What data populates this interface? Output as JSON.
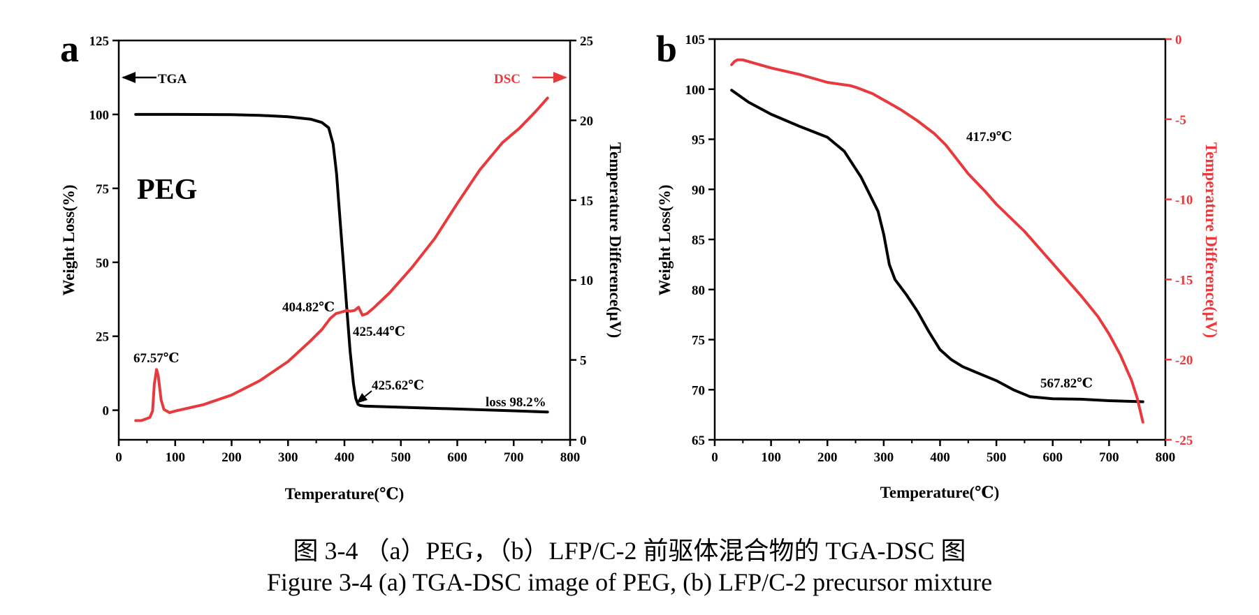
{
  "colors": {
    "tga": "#000000",
    "dsc": "#e8393d"
  },
  "chart_data": [
    {
      "type": "line",
      "panel_label": "a",
      "sample_label": "PEG",
      "xlabel": "Temperature(℃)",
      "ylabel_left": "Weight Loss(%)",
      "ylabel_right": "Temperature Difference(μV)",
      "xlim": [
        0,
        800
      ],
      "ylim_left": [
        -10,
        125
      ],
      "ylim_right": [
        0,
        25
      ],
      "x_ticks": [
        "0",
        "100",
        "200",
        "300",
        "400",
        "500",
        "600",
        "700",
        "800"
      ],
      "y_left_ticks": [
        "0",
        "25",
        "50",
        "75",
        "100",
        "125"
      ],
      "y_right_ticks": [
        "0",
        "5",
        "10",
        "15",
        "20",
        "25"
      ],
      "legend": [
        {
          "name": "TGA",
          "arrow": "left"
        },
        {
          "name": "DSC",
          "arrow": "right"
        }
      ],
      "series": [
        {
          "name": "TGA",
          "axis": "left",
          "x": [
            30,
            100,
            200,
            250,
            300,
            340,
            360,
            372,
            380,
            386,
            392,
            398,
            404,
            410,
            416,
            420,
            424,
            428,
            435,
            450,
            500,
            600,
            700,
            760
          ],
          "values": [
            100,
            100,
            99.9,
            99.7,
            99.2,
            98.4,
            97.3,
            95.5,
            90,
            80,
            65,
            50,
            35,
            20,
            9,
            4,
            2,
            1.6,
            1.4,
            1.3,
            1.0,
            0.4,
            -0.2,
            -0.6
          ]
        },
        {
          "name": "DSC",
          "axis": "right",
          "x": [
            30,
            40,
            55,
            60,
            63,
            67,
            70,
            75,
            80,
            90,
            100,
            150,
            200,
            250,
            300,
            340,
            360,
            375,
            385,
            395,
            404,
            410,
            418,
            425,
            432,
            440,
            450,
            480,
            520,
            560,
            600,
            640,
            680,
            710,
            740,
            760
          ],
          "values": [
            1.2,
            1.2,
            1.4,
            1.8,
            3.5,
            4.4,
            4.0,
            2.5,
            1.9,
            1.7,
            1.8,
            2.2,
            2.8,
            3.7,
            4.9,
            6.2,
            6.9,
            7.6,
            7.9,
            8.0,
            8.1,
            8.05,
            8.1,
            8.3,
            7.8,
            7.9,
            8.2,
            9.2,
            10.8,
            12.6,
            14.8,
            16.9,
            18.6,
            19.5,
            20.6,
            21.4
          ]
        }
      ],
      "annotations": [
        "67.57℃",
        "404.82℃",
        "425.44℃",
        "425.62℃",
        "loss 98.2%"
      ]
    },
    {
      "type": "line",
      "panel_label": "b",
      "xlabel": "Temperature(℃)",
      "ylabel_left": "Weight Loss(%)",
      "ylabel_right": "Temperature Difference(μV)",
      "xlim": [
        0,
        800
      ],
      "ylim_left": [
        65,
        105
      ],
      "ylim_right": [
        -25,
        0
      ],
      "x_ticks": [
        "0",
        "100",
        "200",
        "300",
        "400",
        "500",
        "600",
        "700",
        "800"
      ],
      "y_left_ticks": [
        "65",
        "70",
        "75",
        "80",
        "85",
        "90",
        "95",
        "100",
        "105"
      ],
      "y_right_ticks": [
        "-25",
        "-20",
        "-15",
        "-10",
        "-5",
        "0"
      ],
      "series": [
        {
          "name": "TGA",
          "axis": "left",
          "x": [
            30,
            60,
            100,
            150,
            200,
            230,
            260,
            290,
            300,
            310,
            320,
            340,
            360,
            380,
            400,
            420,
            440,
            470,
            500,
            530,
            560,
            600,
            650,
            700,
            760
          ],
          "values": [
            99.9,
            98.7,
            97.5,
            96.3,
            95.2,
            93.8,
            91.2,
            87.8,
            85.5,
            82.5,
            81.0,
            79.5,
            77.8,
            75.8,
            74.0,
            73.0,
            72.3,
            71.6,
            70.9,
            70.0,
            69.3,
            69.1,
            69.05,
            68.9,
            68.8
          ]
        },
        {
          "name": "DSC",
          "axis": "right",
          "x": [
            30,
            35,
            40,
            50,
            70,
            100,
            150,
            200,
            220,
            240,
            250,
            280,
            300,
            330,
            360,
            390,
            410,
            430,
            450,
            480,
            500,
            550,
            600,
            650,
            680,
            700,
            720,
            740,
            750,
            760
          ],
          "values": [
            -1.6,
            -1.4,
            -1.3,
            -1.3,
            -1.5,
            -1.8,
            -2.2,
            -2.7,
            -2.8,
            -2.9,
            -3.0,
            -3.4,
            -3.8,
            -4.4,
            -5.1,
            -5.9,
            -6.6,
            -7.5,
            -8.4,
            -9.5,
            -10.3,
            -12.0,
            -14.0,
            -16.0,
            -17.3,
            -18.4,
            -19.7,
            -21.3,
            -22.4,
            -23.9
          ]
        }
      ],
      "annotations": [
        "417.9℃",
        "567.82℃"
      ]
    }
  ],
  "captions": {
    "cn": "图 3-4 （a）PEG，（b）LFP/C-2 前驱体混合物的 TGA-DSC 图",
    "en": "Figure 3-4 (a) TGA-DSC image of PEG, (b) LFP/C-2 precursor mixture"
  }
}
